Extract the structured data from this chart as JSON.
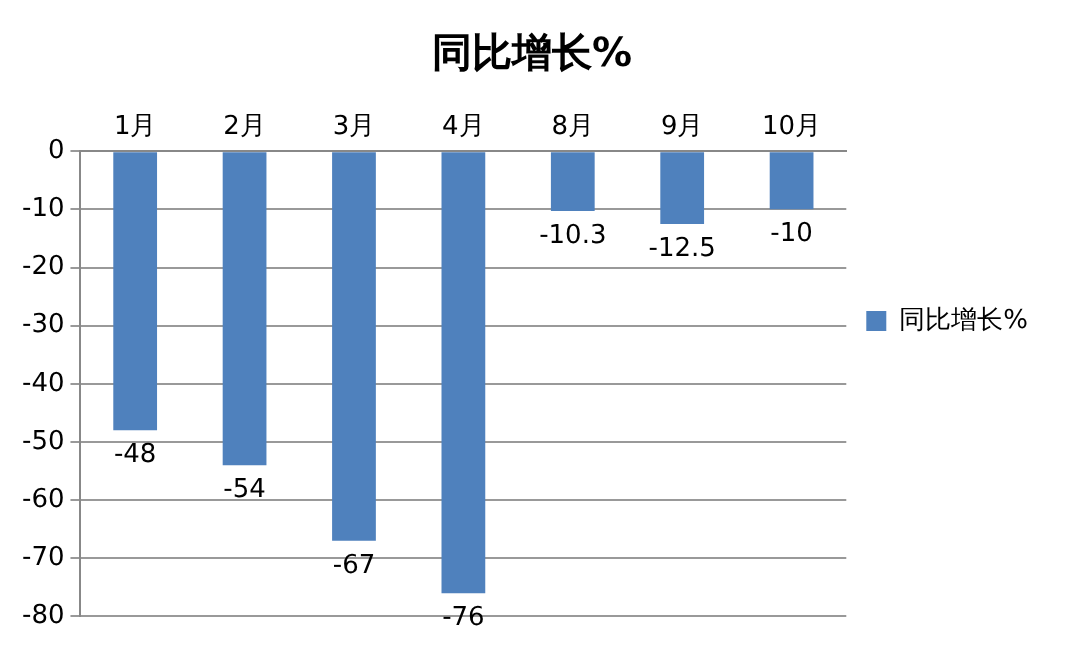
{
  "chart_data": {
    "type": "bar",
    "title": "同比增长%",
    "categories": [
      "1月",
      "2月",
      "3月",
      "4月",
      "8月",
      "9月",
      "10月"
    ],
    "series": [
      {
        "name": "同比增长%",
        "color": "#4f81bd",
        "values": [
          -48,
          -54,
          -67,
          -76,
          -10.3,
          -12.5,
          -10
        ]
      }
    ],
    "ylim": [
      -80,
      0
    ],
    "yticks": [
      0,
      -10,
      -20,
      -30,
      -40,
      -50,
      -60,
      -70,
      -80
    ],
    "grid": "y",
    "legend": "right",
    "data_labels": true
  }
}
